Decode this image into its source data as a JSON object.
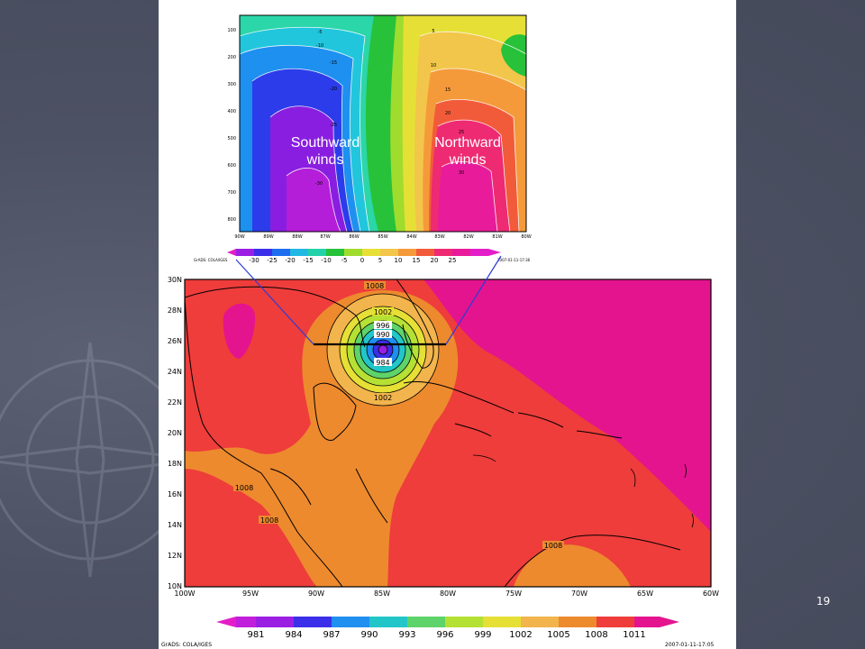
{
  "slide": {
    "page_number": "19"
  },
  "cross_section": {
    "y_ticks": [
      "100",
      "200",
      "300",
      "400",
      "500",
      "600",
      "700",
      "800"
    ],
    "x_ticks": [
      "90W",
      "89W",
      "88W",
      "87W",
      "86W",
      "85W",
      "84W",
      "83W",
      "82W",
      "81W",
      "80W"
    ],
    "contour_labels": [
      "-5",
      "-10",
      "-15",
      "-20",
      "-25",
      "-30",
      "5",
      "10",
      "15",
      "20",
      "25",
      "30"
    ],
    "label_left": "Southward winds",
    "label_right": "Northward winds",
    "colorbar_ticks": [
      "-30",
      "-25",
      "-20",
      "-15",
      "-10",
      "-5",
      "0",
      "5",
      "10",
      "15",
      "20",
      "25"
    ],
    "footer_left": "GrADS: COLA/IGES",
    "footer_right": "2007-01-11-17:36"
  },
  "pressure_map": {
    "lat_ticks": [
      "30N",
      "28N",
      "26N",
      "24N",
      "22N",
      "20N",
      "18N",
      "16N",
      "14N",
      "12N",
      "10N"
    ],
    "lon_ticks": [
      "100W",
      "95W",
      "90W",
      "85W",
      "80W",
      "75W",
      "70W",
      "65W",
      "60W"
    ],
    "contour_labels": [
      "1008",
      "1002",
      "996",
      "990",
      "984",
      "1002",
      "1008",
      "1008",
      "1008"
    ],
    "colorbar_ticks": [
      "981",
      "984",
      "987",
      "990",
      "993",
      "996",
      "999",
      "1002",
      "1005",
      "1008",
      "1011"
    ],
    "footer_left": "GrADS: COLA/IGES",
    "footer_right": "2007-01-11-17:05"
  },
  "colors": {
    "slide_bg": "#4e5364",
    "map_red": "#ee3d3b",
    "map_magenta": "#e4148f",
    "map_orange": "#ed8a2e"
  }
}
